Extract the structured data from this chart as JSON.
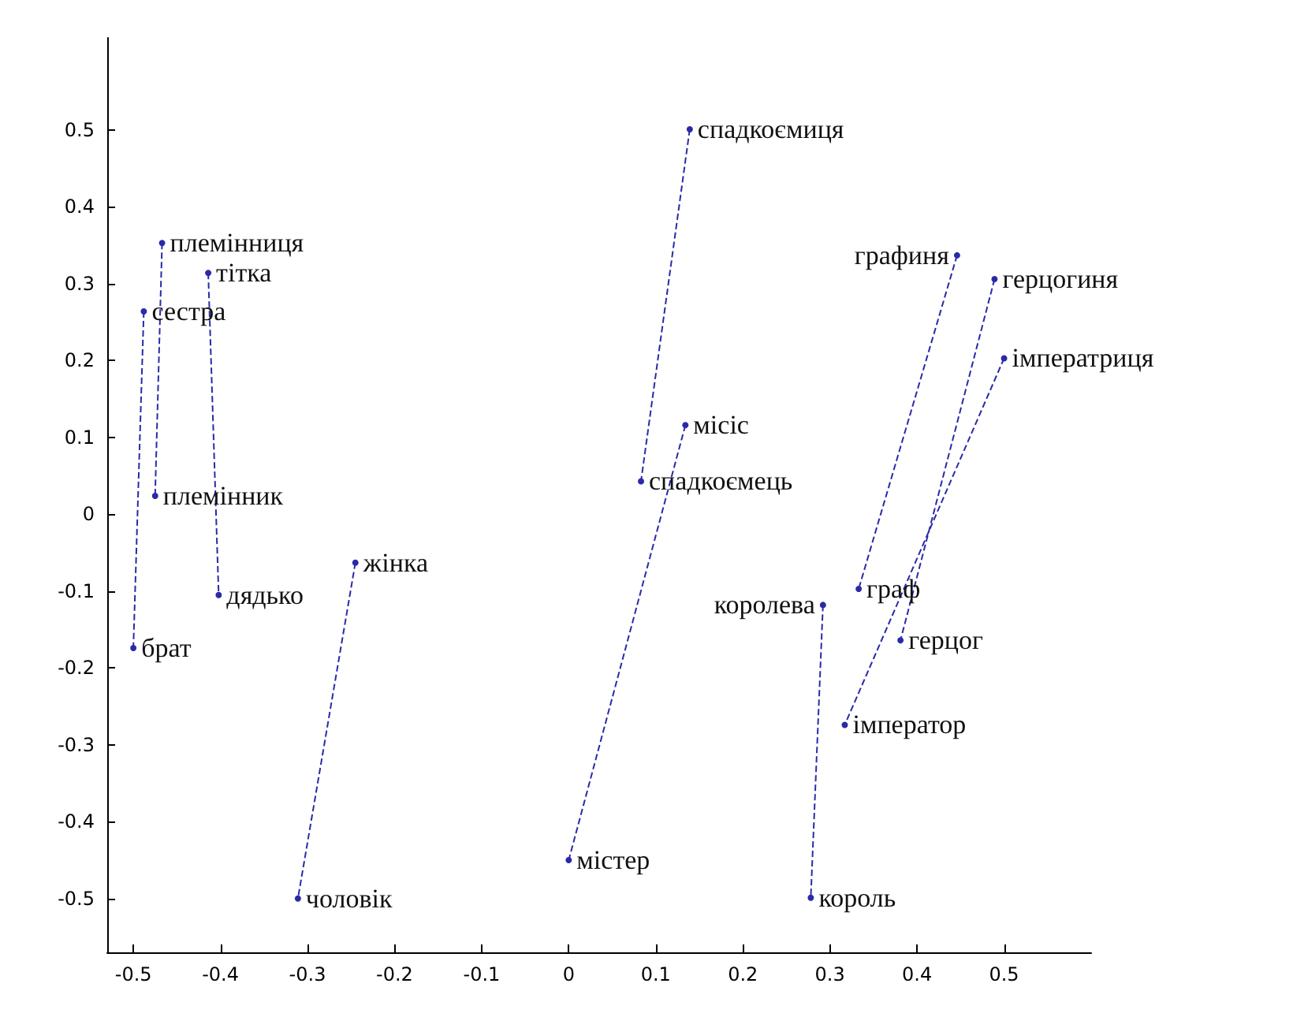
{
  "chart_data": {
    "type": "line",
    "line_style": "dashed",
    "marker": "circle",
    "xlim": [
      -0.53,
      0.6
    ],
    "ylim": [
      -0.57,
      0.62
    ],
    "xticks": [
      -0.5,
      -0.4,
      -0.3,
      -0.2,
      -0.1,
      0,
      0.1,
      0.2,
      0.3,
      0.4,
      0.5
    ],
    "yticks": [
      -0.5,
      -0.4,
      -0.3,
      -0.2,
      -0.1,
      0,
      0.1,
      0.2,
      0.3,
      0.4,
      0.5
    ],
    "series": [
      {
        "color": "#2a2aa8",
        "x": [
          -0.488,
          -0.5
        ],
        "values": [
          0.264,
          -0.174
        ],
        "value_labels": [
          "сестра",
          "брат"
        ]
      },
      {
        "color": "#2a2aa8",
        "x": [
          -0.467,
          -0.475
        ],
        "values": [
          0.353,
          0.024
        ],
        "value_labels": [
          "племінниця",
          "племінник"
        ]
      },
      {
        "color": "#2a2aa8",
        "x": [
          -0.414,
          -0.402
        ],
        "values": [
          0.314,
          -0.105
        ],
        "value_labels": [
          "тітка",
          "дядько"
        ]
      },
      {
        "color": "#2a2aa8",
        "x": [
          -0.245,
          -0.311
        ],
        "values": [
          -0.063,
          -0.5
        ],
        "value_labels": [
          "жінка",
          "чоловік"
        ]
      },
      {
        "color": "#2a2aa8",
        "x": [
          0.139,
          0.083
        ],
        "values": [
          0.501,
          0.043
        ],
        "value_labels": [
          "спадкоємиця",
          "спадкоємець"
        ]
      },
      {
        "color": "#2a2aa8",
        "x": [
          0.134,
          0.0
        ],
        "values": [
          0.116,
          -0.45
        ],
        "value_labels": [
          "місіс",
          "містер"
        ]
      },
      {
        "color": "#2a2aa8",
        "x": [
          0.446,
          0.333
        ],
        "values": [
          0.337,
          -0.097
        ],
        "value_labels": [
          "графиня",
          "граф"
        ]
      },
      {
        "color": "#2a2aa8",
        "x": [
          0.489,
          0.381
        ],
        "values": [
          0.306,
          -0.164
        ],
        "value_labels": [
          "герцогиня",
          "герцог"
        ]
      },
      {
        "color": "#2a2aa8",
        "x": [
          0.5,
          0.317
        ],
        "values": [
          0.203,
          -0.274
        ],
        "value_labels": [
          "імператриця",
          "імператор"
        ]
      },
      {
        "color": "#2a2aa8",
        "x": [
          0.292,
          0.278
        ],
        "values": [
          -0.118,
          -0.499
        ],
        "value_labels": [
          "королева",
          "король"
        ]
      }
    ]
  }
}
